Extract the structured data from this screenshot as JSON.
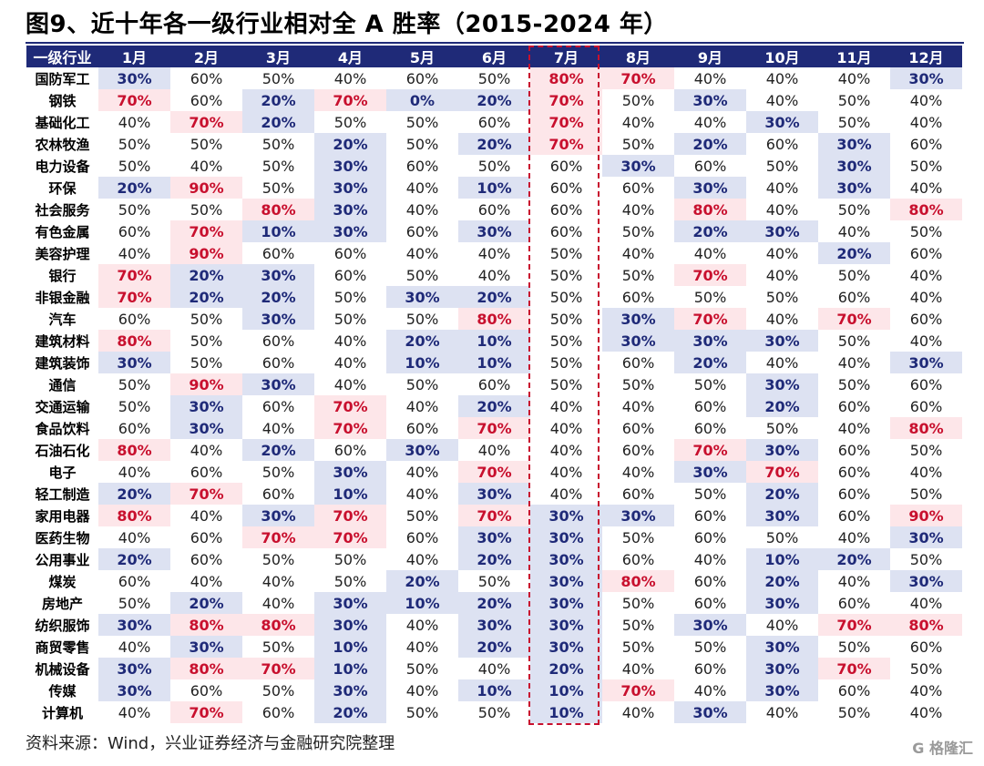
{
  "page": {
    "title": "图9、近十年各一级行业相对全 A 胜率（2015-2024 年）",
    "source": "资料来源：Wind，兴业证券经济与金融研究院整理",
    "watermark": "G 格隆汇"
  },
  "colors": {
    "header_bg": "#1f2a78",
    "high_bg": "#fde6e9",
    "high_text": "#c8102e",
    "low_bg": "#dde2f2",
    "low_text": "#1f2a78",
    "highlight_border": "#c8102e"
  },
  "highlight": {
    "column": "7月",
    "style": "dashed red box"
  },
  "chart_data": {
    "type": "table",
    "title": "图9、近十年各一级行业相对全 A 胜率（2015-2024 年）",
    "unit": "%",
    "header_label": "一级行业",
    "columns": [
      "1月",
      "2月",
      "3月",
      "4月",
      "5月",
      "6月",
      "7月",
      "8月",
      "9月",
      "10月",
      "11月",
      "12月"
    ],
    "rows": [
      {
        "industry": "国防军工",
        "values": [
          30,
          60,
          50,
          40,
          60,
          50,
          80,
          70,
          40,
          40,
          40,
          30
        ]
      },
      {
        "industry": "钢铁",
        "values": [
          70,
          60,
          20,
          70,
          0,
          20,
          70,
          50,
          30,
          40,
          50,
          40
        ]
      },
      {
        "industry": "基础化工",
        "values": [
          40,
          70,
          20,
          50,
          50,
          60,
          70,
          40,
          40,
          30,
          50,
          40
        ]
      },
      {
        "industry": "农林牧渔",
        "values": [
          50,
          50,
          50,
          20,
          50,
          20,
          70,
          50,
          20,
          60,
          30,
          60
        ]
      },
      {
        "industry": "电力设备",
        "values": [
          50,
          40,
          50,
          30,
          60,
          50,
          60,
          30,
          60,
          50,
          30,
          50
        ]
      },
      {
        "industry": "环保",
        "values": [
          20,
          90,
          50,
          30,
          40,
          10,
          60,
          60,
          30,
          40,
          30,
          40
        ]
      },
      {
        "industry": "社会服务",
        "values": [
          50,
          50,
          80,
          30,
          40,
          60,
          60,
          40,
          80,
          40,
          50,
          80
        ]
      },
      {
        "industry": "有色金属",
        "values": [
          60,
          70,
          10,
          30,
          60,
          30,
          60,
          50,
          20,
          30,
          40,
          50
        ]
      },
      {
        "industry": "美容护理",
        "values": [
          40,
          90,
          60,
          60,
          40,
          40,
          50,
          40,
          40,
          40,
          20,
          60
        ]
      },
      {
        "industry": "银行",
        "values": [
          70,
          20,
          30,
          60,
          50,
          40,
          50,
          50,
          70,
          40,
          50,
          40
        ]
      },
      {
        "industry": "非银金融",
        "values": [
          70,
          20,
          20,
          50,
          30,
          20,
          50,
          60,
          50,
          50,
          60,
          40
        ]
      },
      {
        "industry": "汽车",
        "values": [
          60,
          50,
          30,
          50,
          50,
          80,
          50,
          30,
          70,
          40,
          70,
          60
        ]
      },
      {
        "industry": "建筑材料",
        "values": [
          80,
          50,
          60,
          40,
          20,
          10,
          50,
          30,
          30,
          30,
          50,
          40
        ]
      },
      {
        "industry": "建筑装饰",
        "values": [
          30,
          50,
          60,
          40,
          10,
          10,
          50,
          60,
          20,
          40,
          40,
          30
        ]
      },
      {
        "industry": "通信",
        "values": [
          50,
          90,
          30,
          40,
          50,
          60,
          50,
          50,
          50,
          30,
          50,
          60
        ]
      },
      {
        "industry": "交通运输",
        "values": [
          50,
          30,
          60,
          70,
          40,
          20,
          40,
          40,
          60,
          20,
          60,
          60
        ]
      },
      {
        "industry": "食品饮料",
        "values": [
          60,
          30,
          40,
          70,
          60,
          70,
          40,
          60,
          60,
          50,
          40,
          80
        ]
      },
      {
        "industry": "石油石化",
        "values": [
          80,
          40,
          20,
          60,
          30,
          40,
          40,
          60,
          70,
          30,
          60,
          50
        ]
      },
      {
        "industry": "电子",
        "values": [
          40,
          60,
          50,
          30,
          40,
          70,
          40,
          40,
          30,
          70,
          60,
          40
        ]
      },
      {
        "industry": "轻工制造",
        "values": [
          20,
          70,
          60,
          10,
          40,
          30,
          40,
          60,
          50,
          20,
          60,
          50
        ]
      },
      {
        "industry": "家用电器",
        "values": [
          80,
          40,
          30,
          70,
          50,
          70,
          30,
          30,
          60,
          30,
          60,
          90
        ]
      },
      {
        "industry": "医药生物",
        "values": [
          40,
          60,
          70,
          70,
          60,
          30,
          30,
          50,
          60,
          50,
          40,
          30
        ]
      },
      {
        "industry": "公用事业",
        "values": [
          20,
          60,
          50,
          50,
          40,
          20,
          30,
          60,
          40,
          10,
          20,
          50
        ]
      },
      {
        "industry": "煤炭",
        "values": [
          60,
          40,
          40,
          50,
          20,
          50,
          30,
          80,
          60,
          20,
          40,
          30
        ]
      },
      {
        "industry": "房地产",
        "values": [
          50,
          20,
          40,
          30,
          10,
          20,
          30,
          50,
          60,
          30,
          60,
          40
        ]
      },
      {
        "industry": "纺织服饰",
        "values": [
          30,
          80,
          80,
          30,
          40,
          30,
          30,
          50,
          30,
          40,
          70,
          80
        ]
      },
      {
        "industry": "商贸零售",
        "values": [
          40,
          30,
          50,
          10,
          40,
          20,
          30,
          50,
          50,
          30,
          50,
          60
        ]
      },
      {
        "industry": "机械设备",
        "values": [
          30,
          80,
          70,
          10,
          50,
          40,
          20,
          40,
          60,
          30,
          70,
          50
        ]
      },
      {
        "industry": "传媒",
        "values": [
          30,
          60,
          50,
          30,
          40,
          10,
          10,
          70,
          40,
          30,
          60,
          40
        ]
      },
      {
        "industry": "计算机",
        "values": [
          40,
          70,
          60,
          20,
          50,
          50,
          10,
          40,
          30,
          40,
          50,
          40
        ]
      }
    ]
  }
}
